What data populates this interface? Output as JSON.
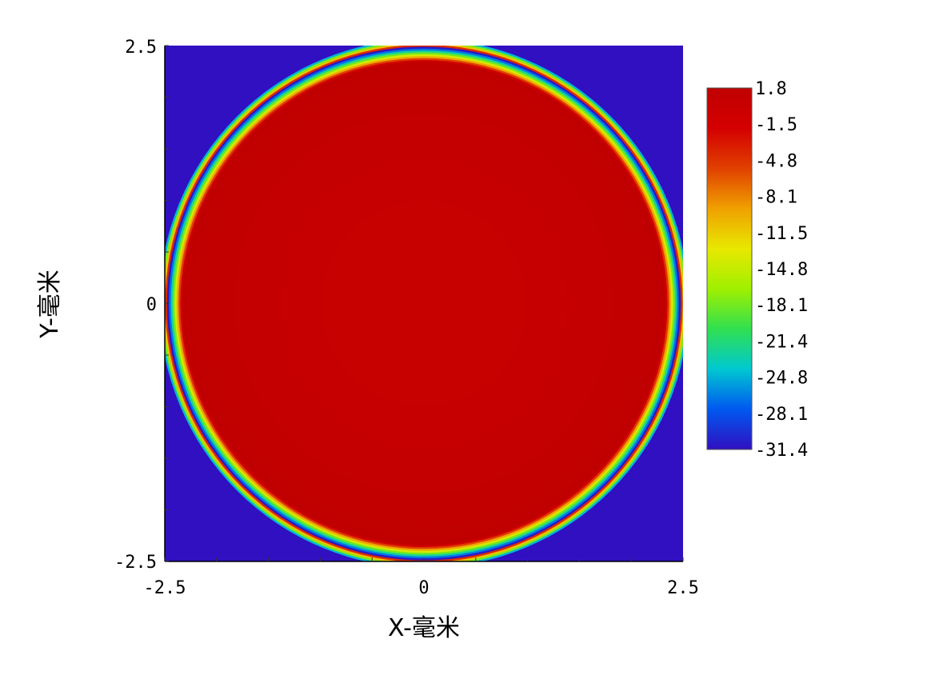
{
  "chart_data": {
    "type": "heatmap",
    "title": "",
    "xlabel": "X-毫米",
    "ylabel": "Y-毫米",
    "xlim": [
      -2.5,
      2.5
    ],
    "ylim": [
      -2.5,
      2.5
    ],
    "x_tick_labels": [
      "-2.5",
      "0",
      "2.5"
    ],
    "y_tick_labels": [
      "2.5",
      "0",
      "-2.5"
    ],
    "colorbar": {
      "min": -31.4,
      "max": 1.8,
      "tick_labels": [
        "1.8",
        "-1.5",
        "-4.8",
        "-8.1",
        "-11.5",
        "-14.8",
        "-18.1",
        "-21.4",
        "-24.8",
        "-28.1",
        "-31.4"
      ]
    },
    "field": {
      "shape": "circle",
      "center": [
        0,
        0
      ],
      "radius_mm": 2.48,
      "inside_value_center": 0.5,
      "inside_value_rim": 1.8,
      "outside_value": -31.4,
      "edge_transition_width_mm": 0.15
    },
    "colors": {
      "colormap": [
        "#3010c0",
        "#0058f0",
        "#00c8d0",
        "#30e050",
        "#a0f000",
        "#e8e800",
        "#f0a000",
        "#e04000",
        "#d40000",
        "#c00000"
      ],
      "frame": "#000000"
    },
    "grid": false
  }
}
